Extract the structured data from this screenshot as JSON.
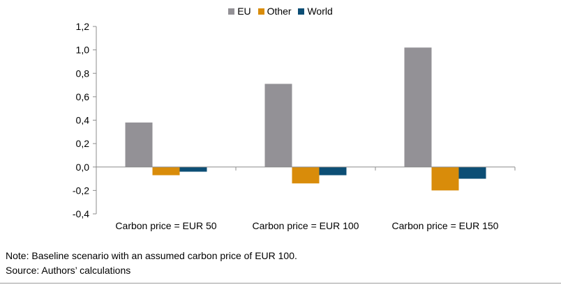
{
  "chart_data": {
    "type": "bar",
    "categories": [
      "Carbon price = EUR 50",
      "Carbon price = EUR 100",
      "Carbon price = EUR 150"
    ],
    "series": [
      {
        "name": "EU",
        "values": [
          0.38,
          0.71,
          1.02
        ],
        "color": "#939196"
      },
      {
        "name": "Other",
        "values": [
          -0.07,
          -0.14,
          -0.2
        ],
        "color": "#d98c0a"
      },
      {
        "name": "World",
        "values": [
          -0.04,
          -0.07,
          -0.1
        ],
        "color": "#0c4e75"
      }
    ],
    "title": "",
    "xlabel": "",
    "ylabel": "",
    "ylim": [
      -0.4,
      1.2
    ],
    "yticks": [
      "-0,4",
      "-0,2",
      "0,0",
      "0,2",
      "0,4",
      "0,6",
      "0,8",
      "1,0",
      "1,2"
    ],
    "grid": false,
    "legend_position": "top-center"
  },
  "notes": {
    "note": "Note: Baseline scenario with an assumed carbon price of EUR 100.",
    "source": "Source: Authors’ calculations"
  }
}
